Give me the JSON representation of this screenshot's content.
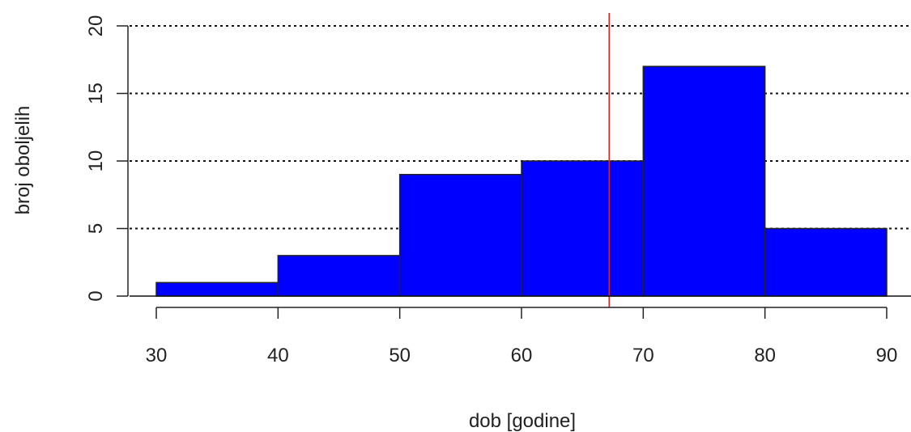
{
  "chart_data": {
    "type": "bar",
    "title": "",
    "xlabel": "dob [godine]",
    "ylabel": "broj oboljelih",
    "bins": [
      {
        "from": 30,
        "to": 40,
        "count": 1
      },
      {
        "from": 40,
        "to": 50,
        "count": 3
      },
      {
        "from": 50,
        "to": 60,
        "count": 9
      },
      {
        "from": 60,
        "to": 70,
        "count": 10
      },
      {
        "from": 70,
        "to": 80,
        "count": 17
      },
      {
        "from": 80,
        "to": 90,
        "count": 5
      }
    ],
    "xlim": [
      30,
      90
    ],
    "ylim": [
      0,
      20
    ],
    "x_ticks": [
      "30",
      "40",
      "50",
      "60",
      "70",
      "80",
      "90"
    ],
    "y_ticks": [
      "0",
      "5",
      "10",
      "15",
      "20"
    ],
    "grid": "horizontal dotted",
    "bar_color": "#0000ff",
    "bar_edge_color": "#222222",
    "reference_line": {
      "x": 67.2,
      "color": "#e02020"
    }
  }
}
